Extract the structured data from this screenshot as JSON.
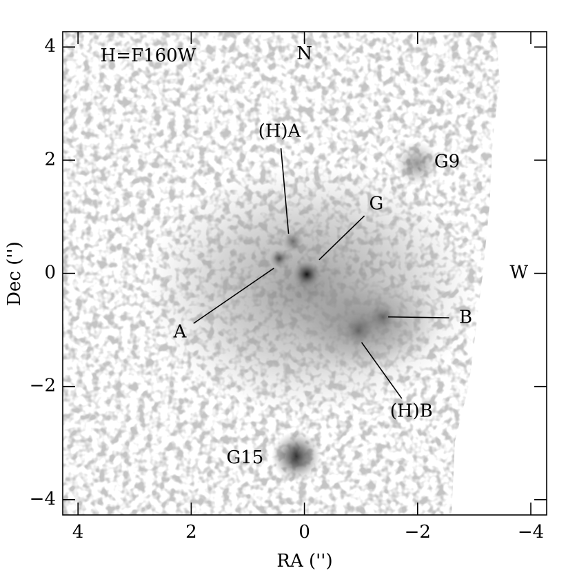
{
  "chart_data": {
    "type": "image",
    "xlabel": "RA ('')",
    "ylabel": "Dec ('')",
    "xlim": [
      4.27,
      -4.28
    ],
    "ylim": [
      -4.27,
      4.27
    ],
    "xticks": [
      4,
      2,
      0,
      {
        "value": -2,
        "label": "−2"
      },
      {
        "value": -4,
        "label": "−4"
      }
    ],
    "yticks": [
      {
        "value": -4,
        "label": "−4"
      },
      {
        "value": -2,
        "label": "−2"
      },
      0,
      2,
      4
    ],
    "annotations": [
      {
        "text": "H=F160W",
        "x": 2.76,
        "y": 3.83
      },
      {
        "text": "N",
        "x": 0,
        "y": 3.87
      },
      {
        "text": "W",
        "x": -3.79,
        "y": 0
      },
      {
        "text": "(H)A",
        "x": 0.44,
        "y": 2.5,
        "point_x": 0.28,
        "point_y": 0.7
      },
      {
        "text": "G",
        "x": -1.27,
        "y": 1.22,
        "point_x": -0.26,
        "point_y": 0.24
      },
      {
        "text": "A",
        "x": 2.2,
        "y": -1.05,
        "point_x": 0.54,
        "point_y": 0.09
      },
      {
        "text": "B",
        "x": -2.85,
        "y": -0.79,
        "point_x": -1.48,
        "point_y": -0.77
      },
      {
        "text": "(H)B",
        "x": -1.89,
        "y": -2.45,
        "point_x": -1.01,
        "point_y": -1.22
      },
      {
        "text": "G9",
        "x": -2.52,
        "y": 1.96
      },
      {
        "text": "G15",
        "x": 1.05,
        "y": -3.27
      }
    ]
  }
}
